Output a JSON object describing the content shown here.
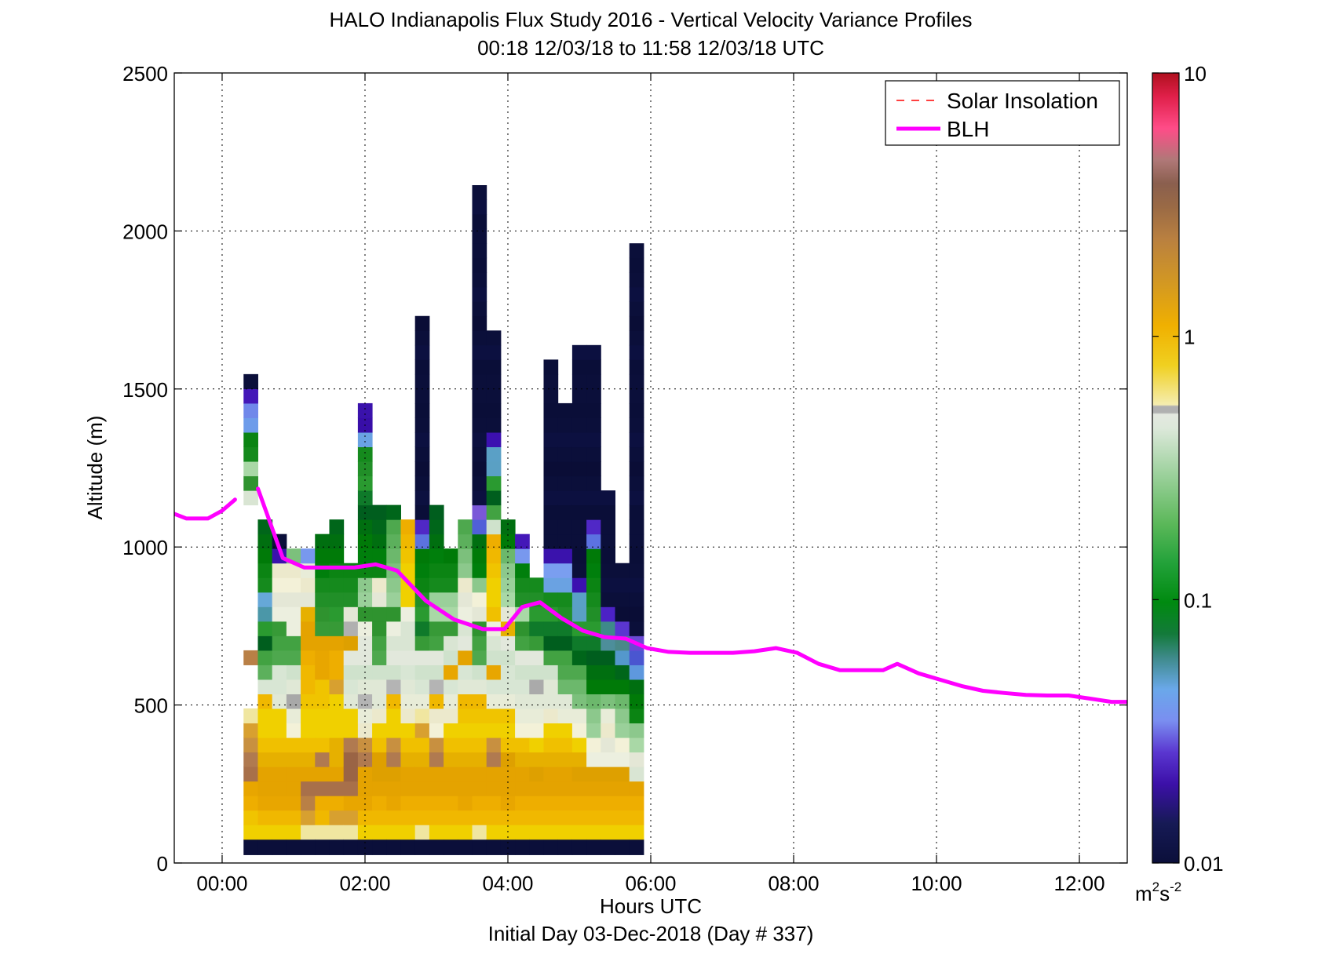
{
  "chart_data": {
    "type": "heatmap",
    "title": "HALO Indianapolis Flux Study 2016 - Vertical Velocity Variance Profiles",
    "subtitle": "00:18 12/03/18 to 11:58 12/03/18  UTC",
    "xlabel": "Hours UTC",
    "xlabel2": "Initial Day 03-Dec-2018 (Day # 337)",
    "ylabel": "Altitude (m)",
    "xlim": [
      -0.67,
      12.67
    ],
    "ylim": [
      0,
      2500
    ],
    "xticks": [
      0,
      2,
      4,
      6,
      8,
      10,
      12
    ],
    "xtick_labels": [
      "00:00",
      "02:00",
      "04:00",
      "06:00",
      "08:00",
      "10:00",
      "12:00"
    ],
    "yticks": [
      0,
      500,
      1000,
      1500,
      2000,
      2500
    ],
    "ytick_labels": [
      "0",
      "500",
      "1000",
      "1500",
      "2000",
      "2500"
    ],
    "grid": true,
    "colorbar": {
      "scale": "log",
      "range": [
        0.01,
        10
      ],
      "ticks": [
        0.01,
        0.1,
        1,
        10
      ],
      "tick_labels": [
        "0.01",
        "0.1",
        "1",
        "10"
      ],
      "unit_base": "m",
      "unit_sup1": "2",
      "unit_mid": "s",
      "unit_sup2": "-2"
    },
    "legend": {
      "position": "top-right",
      "entries": [
        {
          "label": "Solar Insolation",
          "color": "#ff0000",
          "style": "dashed"
        },
        {
          "label": "BLH",
          "color": "#ff00ff",
          "style": "solid"
        }
      ]
    },
    "heatmap_grid": {
      "x_start": 0.3,
      "dx": 0.2,
      "y_start": 75,
      "dy": 46,
      "columns": [
        "1:s|1:s|2:s|2:s|2:l|3:l|3:l|3:l|3:l|4:v|4:v|4:v|3:l|4:v|4:v|5:b|5:b|4:v|4:v|4:v|4:v|5:b|5:b|5:w|6:g|6:g|7:G|7:G|8:c|8:C|9:o|10:n",
        "1:s|2:s|3:s|3:s|2:s|3:s|3:s|4:s|3:s|4:s|5:w|5:g|6:g|6:G|7:G|8:C|8:c|6:G|6:G|7:G|7:G|7:G",
        "1:s|2:s|3:s|3:s|2:s|3:s|3:s|4:s|3:s|5:w|5:w|4:w|5:g|5:g|5:g|4:w|4:w|4:w|4:w|9:o|10:n",
        "1:s|2:s|3:s|3:s|2:s|3:s|3:s|4:w|5:w|4:x|4:w|5:w|5:g|5:g|5:w|4:w|4:w|4:w|4:w|5:g",
        "1:l|2:l|3:l|3:l|2:s|3:s|3:s|3:s|3:s|3:s|3:s|2:s|2:s|3:s|2:s|3:s|4:w|5:w|5:w|8:c",
        "1:l|2:s|2:s|3:l|2:s|3:l|3:s|3:s|2:s|3:s|2:s|4:s|3:s|3:s|5:g|5:g|6:G|6:G|7:G|7:G|7:G",
        "1:l|2:l|2:s|3:l|2:s|3:s|2:s|3:s|3:s|2:s|3:l|3:s|2:s|3:s|5:g|6:G|6:G|6:G|6:G|7:G|7:G|7:G",
        "1:l|2:l|3:s|3:l|3:l|2:l|2:l|3:s|3:s|5:w|5:w|5:w|5:w|4:s|5:x|5:w|6:G|6:G|6:G",
        "1:s|2:s|3:s|3:s|2:s|3:l|3:l|5:w|5:w|5:x|4:w|5:w|5:w|4:w|5:w|5:g|6:g|6:g|6:G|6:G|6:G|6:G|7:G|7:G|7:G|7:G|7:G|8:c|9:o|9:o",
        "1:s|2:s|2:s|3:s|3:s|2:s|3:s|4:s|4:w|5:w|4:w|5:w|5:g|5:g|6:g|5:g|4:w|5:w|6:G|6:G|7:G|7:G|7:G",
        "1:s|2:s|3:s|3:s|3:s|3:l|3:l|3:s|3:s|4:s|4:x|5:w|5:w|5:w|5:w|5:g|6:g|6:g|6:g|6:g|6:g|6:g|6:G",
        "1:s|2:s|2:s|3:s|2:s|3:s|3:s|4:s|4:w|4:w|4:w|4:w|5:w|5:w|4:w|4:w|4:s|3:s|3:s|3:s|3:s|3:s",
        "1:l|2:s|2:s|3:s|2:s|3:s|3:s|3:l|3:l|4:w|5:w|5:w|5:w|6:g|6:G|6:G|6:G|7:G|7:G|7:G|8:C|9:o|10:n|10:n|10:n|10:n|10:n|10:n|10:n|10:n|10:n|10:n|10:n|10:n|10:n|10:n",
        "1:s|2:s|2:s|3:s|2:s|3:l|3:l|4:w|4:w|4:s|4:x|5:w|5:w|5:g|5:g|6:g|6:g|6:G|6:G|6:G|7:G|7:G|7:G",
        "1:s|2:s|2:s|3:s|2:s|3:s|3:s|4:s|4:w|4:w|5:w|4:s|4:w|5:w|5:g|6:g|6:g|6:G|6:G|7:G",
        "1:s|2:s|3:s|3:s|2:s|3:s|3:s|4:s|4:s|4:s|4:w|4:w|4:s|4:w|4:w|4:w|4:w|5:w|5:g|5:g|6:g|6:g",
        "1:l|2:s|2:s|3:s|2:s|3:s|3:s|3:s|4:s|4:s|4:w|5:w|5:g|5:g|6:g|5:w|5:w|6:g|7:G|7:G|7:G|8:C|9:o|10:n|10:n|10:n|10:n|10:n|10:n|10:n|10:n|10:n|10:n|10:n|10:n|10:n|10:n|10:n|10:n|10:n|10:n|10:n|10:n|10:n|10:n",
        "1:s|2:s|2:s|3:s|2:s|3:l|3:l|4:s|4:s|4:w|5:w|4:s|4:w|5:w|5:w|4:s|4:s|4:s|4:s|4:s|4:s|5:w|6:g|6:G|7:G|8:c|8:C|9:o|10:n|10:n|10:n|10:n|10:n|10:n|10:n",
        "1:s|2:s|3:s|3:s|2:s|2:s|3:s|4:s|4:s|4:w|5:w|4:w|4:w|4:w|4:s|5:w|5:g|5:g|5:g|6:g|6:G|6:G",
        "1:s|2:s|2:s|3:s|2:s|3:s|3:s|4:w|5:w|5:w|5:w|5:w|5:w|5:g|6:g|6:g|6:G|6:G|7:G|8:c|9:o",
        "1:s|2:s|2:s|3:s|3:s|3:s|4:s|4:w|5:w|5:w|5:x|5:w|5:w|6:g|6:G|6:G|6:G|6:G",
        "1:s|2:s|2:s|3:s|2:s|3:s|3:s|4:s|4:w|5:w|4:w|5:w|6:g|6:G|6:G|6:G|7:G|8:c|8:C|9:o|10:n|10:n|10:n|10:n|10:n|10:n|10:n|10:n|10:n|10:n|10:n|10:n|10:n",
        "1:s|2:s|2:s|3:s|2:s|3:s|3:s|4:s|5:w|5:w|5:g|6:g|6:g|6:G|6:G|7:G|7:G|8:c|8:C|9:o|10:n|10:n|10:n|10:n|10:n|10:n|10:n|10:n|10:n|10:n",
        "1:s|2:s|2:s|3:s|3:s|3:s|4:s|4:w|5:w|5:g|5:g|6:g|6:G|7:G|7:G|8:c|8:C|9:o|10:n|10:n|10:n|10:n|10:n|10:n|10:n|10:n|10:n|10:n|10:n|10:n|10:n|10:n|10:n|10:n",
        "1:s|2:s|2:s|3:s|3:s|4:w|5:w|5:g|5:g|6:g|6:G|6:G|7:G|7:G|7:G|7:G|7:G|7:G|7:G|7:G|8:C|9:o|10:n|10:n|10:n|10:n|10:n|10:n|10:n|10:n|10:n|10:n|10:n|10:n",
        "1:s|2:s|2:s|3:s|3:s|4:w|4:w|5:w|5:w|5:g|6:G|6:G|7:G|8:c|8:C|9:o|10:n|10:n|10:n|10:n|10:n|10:n|10:n|10:n",
        "1:s|2:s|2:s|3:s|3:s|4:w|5:w|5:g|5:g|6:g|6:G|7:G|8:c|8:C|9:o|10:n|10:n|10:n|10:n",
        "1:s|2:s|2:s|3:s|4:w|5:w|5:g|6:g|6:G|7:G|7:G|8:c|8:C|9:o|10:n|10:n|10:n|10:n|10:n|10:n|10:n|10:n|10:n|10:n|10:n|10:n|10:n|10:n|10:n|10:n|10:n|10:n|10:n|10:n|10:n|10:n|10:n|10:n|10:n|10:n|10:n"
      ]
    },
    "blh": {
      "x": [
        -0.67,
        -0.5,
        -0.2,
        0.0,
        0.18,
        null,
        0.5,
        0.85,
        1.15,
        1.5,
        1.85,
        2.15,
        2.45,
        2.85,
        3.25,
        3.65,
        3.95,
        4.2,
        4.45,
        4.75,
        5.05,
        5.35,
        5.65,
        5.95,
        6.25,
        6.55,
        6.85,
        7.15,
        7.45,
        7.75,
        8.05,
        8.35,
        8.65,
        8.95,
        9.25,
        9.45,
        9.75,
        10.05,
        10.35,
        10.65,
        10.95,
        11.25,
        11.55,
        11.85,
        12.15,
        12.45,
        12.67
      ],
      "y": [
        1105,
        1090,
        1090,
        1115,
        1150,
        null,
        1185,
        965,
        935,
        935,
        935,
        945,
        925,
        830,
        770,
        740,
        740,
        810,
        825,
        775,
        735,
        715,
        710,
        680,
        668,
        665,
        665,
        665,
        670,
        680,
        665,
        630,
        610,
        610,
        610,
        630,
        600,
        580,
        560,
        545,
        538,
        532,
        530,
        530,
        520,
        510,
        510
      ]
    }
  }
}
